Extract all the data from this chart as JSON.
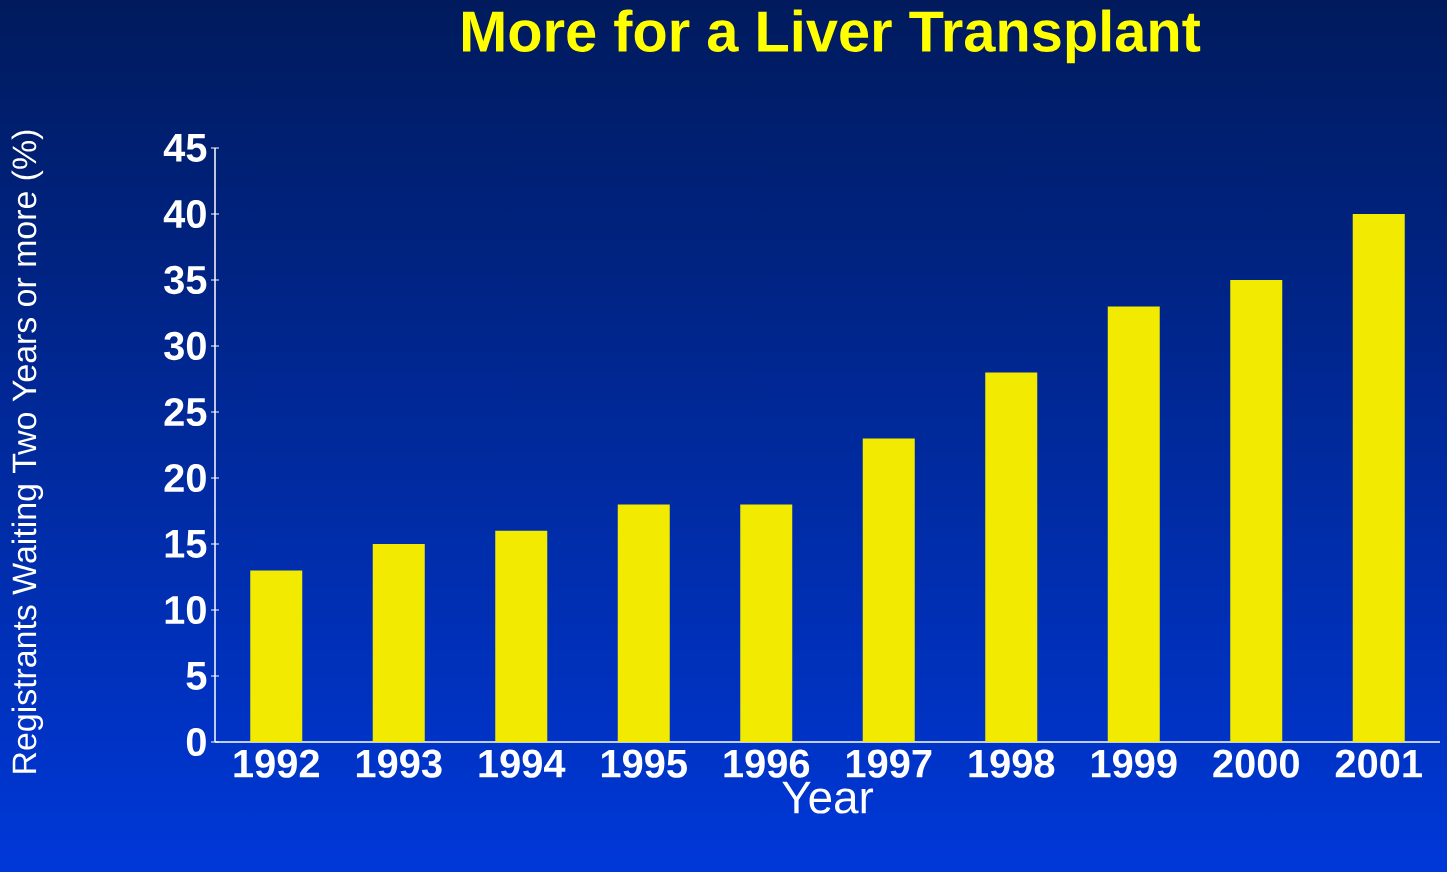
{
  "chart_data": {
    "type": "bar",
    "title": "More for a Liver Transplant",
    "xlabel": "Year",
    "ylabel": "Registrants Waiting Two Years or more (%)",
    "categories": [
      "1992",
      "1993",
      "1994",
      "1995",
      "1996",
      "1997",
      "1998",
      "1999",
      "2000",
      "2001"
    ],
    "values": [
      13,
      15,
      16,
      18,
      18,
      23,
      28,
      33,
      35,
      40
    ],
    "color": "#f2ea00",
    "ylim": [
      0,
      45
    ],
    "yticks": [
      0,
      5,
      10,
      15,
      20,
      25,
      30,
      35,
      40,
      45
    ]
  }
}
